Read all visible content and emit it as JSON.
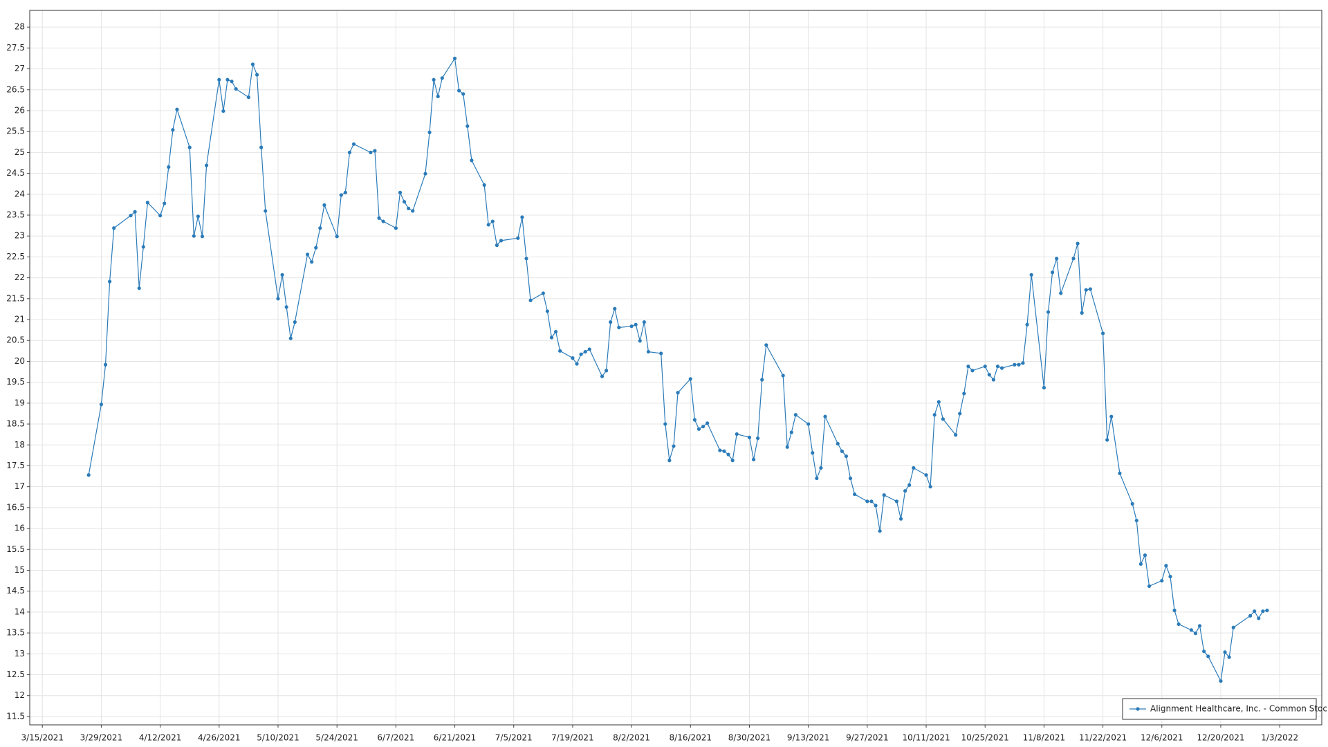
{
  "chart_data": {
    "type": "line",
    "x": [
      "3/26/2021",
      "3/29/2021",
      "3/30/2021",
      "3/31/2021",
      "4/1/2021",
      "4/5/2021",
      "4/6/2021",
      "4/7/2021",
      "4/8/2021",
      "4/9/2021",
      "4/12/2021",
      "4/13/2021",
      "4/14/2021",
      "4/15/2021",
      "4/16/2021",
      "4/19/2021",
      "4/20/2021",
      "4/21/2021",
      "4/22/2021",
      "4/23/2021",
      "4/26/2021",
      "4/27/2021",
      "4/28/2021",
      "4/29/2021",
      "4/30/2021",
      "5/3/2021",
      "5/4/2021",
      "5/5/2021",
      "5/6/2021",
      "5/7/2021",
      "5/10/2021",
      "5/11/2021",
      "5/12/2021",
      "5/13/2021",
      "5/14/2021",
      "5/17/2021",
      "5/18/2021",
      "5/19/2021",
      "5/20/2021",
      "5/21/2021",
      "5/24/2021",
      "5/25/2021",
      "5/26/2021",
      "5/27/2021",
      "5/28/2021",
      "6/1/2021",
      "6/2/2021",
      "6/3/2021",
      "6/4/2021",
      "6/7/2021",
      "6/8/2021",
      "6/9/2021",
      "6/10/2021",
      "6/11/2021",
      "6/14/2021",
      "6/15/2021",
      "6/16/2021",
      "6/17/2021",
      "6/18/2021",
      "6/21/2021",
      "6/22/2021",
      "6/23/2021",
      "6/24/2021",
      "6/25/2021",
      "6/28/2021",
      "6/29/2021",
      "6/30/2021",
      "7/1/2021",
      "7/2/2021",
      "7/6/2021",
      "7/7/2021",
      "7/8/2021",
      "7/9/2021",
      "7/12/2021",
      "7/13/2021",
      "7/14/2021",
      "7/15/2021",
      "7/16/2021",
      "7/19/2021",
      "7/20/2021",
      "7/21/2021",
      "7/22/2021",
      "7/23/2021",
      "7/26/2021",
      "7/27/2021",
      "7/28/2021",
      "7/29/2021",
      "7/30/2021",
      "8/2/2021",
      "8/3/2021",
      "8/4/2021",
      "8/5/2021",
      "8/6/2021",
      "8/9/2021",
      "8/10/2021",
      "8/11/2021",
      "8/12/2021",
      "8/13/2021",
      "8/16/2021",
      "8/17/2021",
      "8/18/2021",
      "8/19/2021",
      "8/20/2021",
      "8/23/2021",
      "8/24/2021",
      "8/25/2021",
      "8/26/2021",
      "8/27/2021",
      "8/30/2021",
      "8/31/2021",
      "9/1/2021",
      "9/2/2021",
      "9/3/2021",
      "9/7/2021",
      "9/8/2021",
      "9/9/2021",
      "9/10/2021",
      "9/13/2021",
      "9/14/2021",
      "9/15/2021",
      "9/16/2021",
      "9/17/2021",
      "9/20/2021",
      "9/21/2021",
      "9/22/2021",
      "9/23/2021",
      "9/24/2021",
      "9/27/2021",
      "9/28/2021",
      "9/29/2021",
      "9/30/2021",
      "10/1/2021",
      "10/4/2021",
      "10/5/2021",
      "10/6/2021",
      "10/7/2021",
      "10/8/2021",
      "10/11/2021",
      "10/12/2021",
      "10/13/2021",
      "10/14/2021",
      "10/15/2021",
      "10/18/2021",
      "10/19/2021",
      "10/20/2021",
      "10/21/2021",
      "10/22/2021",
      "10/25/2021",
      "10/26/2021",
      "10/27/2021",
      "10/28/2021",
      "10/29/2021",
      "11/1/2021",
      "11/2/2021",
      "11/3/2021",
      "11/4/2021",
      "11/5/2021",
      "11/8/2021",
      "11/9/2021",
      "11/10/2021",
      "11/11/2021",
      "11/12/2021",
      "11/15/2021",
      "11/16/2021",
      "11/17/2021",
      "11/18/2021",
      "11/19/2021",
      "11/22/2021",
      "11/23/2021",
      "11/24/2021",
      "11/26/2021",
      "11/29/2021",
      "11/30/2021",
      "12/1/2021",
      "12/2/2021",
      "12/3/2021",
      "12/6/2021",
      "12/7/2021",
      "12/8/2021",
      "12/9/2021",
      "12/10/2021",
      "12/13/2021",
      "12/14/2021",
      "12/15/2021",
      "12/16/2021",
      "12/17/2021",
      "12/20/2021",
      "12/21/2021",
      "12/22/2021",
      "12/23/2021",
      "12/27/2021",
      "12/28/2021",
      "12/29/2021",
      "12/30/2021",
      "12/31/2021"
    ],
    "series": [
      {
        "name": "Alignment Healthcare, Inc. - Common Stock",
        "color": "#2b7bb9",
        "values": [
          17.28,
          18.97,
          19.92,
          21.91,
          23.19,
          23.49,
          23.58,
          21.75,
          22.74,
          23.8,
          23.49,
          23.78,
          24.65,
          25.54,
          26.03,
          25.12,
          23.0,
          23.47,
          22.99,
          24.69,
          26.74,
          25.99,
          26.74,
          26.7,
          26.52,
          26.32,
          27.11,
          26.86,
          25.12,
          23.6,
          21.5,
          22.07,
          21.3,
          20.55,
          20.94,
          22.56,
          22.38,
          22.72,
          23.19,
          23.74,
          22.99,
          23.98,
          24.04,
          25.0,
          25.2,
          25.0,
          25.04,
          23.43,
          23.35,
          23.19,
          24.04,
          23.82,
          23.66,
          23.6,
          24.49,
          25.48,
          26.74,
          26.34,
          26.78,
          27.25,
          26.48,
          26.4,
          25.63,
          24.81,
          24.22,
          23.27,
          23.35,
          22.78,
          22.89,
          22.95,
          23.45,
          22.46,
          21.46,
          21.63,
          21.2,
          20.57,
          20.71,
          20.25,
          20.08,
          19.94,
          20.17,
          20.23,
          20.29,
          19.64,
          19.78,
          20.94,
          21.26,
          20.81,
          20.84,
          20.88,
          20.49,
          20.94,
          20.23,
          20.19,
          18.5,
          17.63,
          17.97,
          19.25,
          19.58,
          18.6,
          18.38,
          18.44,
          18.52,
          17.87,
          17.85,
          17.77,
          17.63,
          18.26,
          18.18,
          17.65,
          18.16,
          19.56,
          20.39,
          19.66,
          17.95,
          18.3,
          18.72,
          18.5,
          17.81,
          17.2,
          17.45,
          18.68,
          18.03,
          17.85,
          17.73,
          17.2,
          16.82,
          16.65,
          16.65,
          16.55,
          15.94,
          16.8,
          16.65,
          16.23,
          16.9,
          17.04,
          17.45,
          17.28,
          17.0,
          18.72,
          19.03,
          18.62,
          18.24,
          18.75,
          19.23,
          19.88,
          19.78,
          19.88,
          19.68,
          19.56,
          19.88,
          19.84,
          19.92,
          19.92,
          19.96,
          20.88,
          22.07,
          19.37,
          21.18,
          22.13,
          22.46,
          21.63,
          22.46,
          22.82,
          21.16,
          21.71,
          21.73,
          20.67,
          18.12,
          18.68,
          17.32,
          16.59,
          16.19,
          15.15,
          15.36,
          14.62,
          14.75,
          15.11,
          14.85,
          14.04,
          13.71,
          13.57,
          13.49,
          13.67,
          13.06,
          12.94,
          12.35,
          13.04,
          12.92,
          13.63,
          13.91,
          14.02,
          13.85,
          14.02,
          14.04
        ]
      }
    ],
    "xlim": [
      "3/12/2021",
      "1/13/2022"
    ],
    "xticks": [
      "3/15/2021",
      "3/29/2021",
      "4/12/2021",
      "4/26/2021",
      "5/10/2021",
      "5/24/2021",
      "6/7/2021",
      "6/21/2021",
      "7/5/2021",
      "7/19/2021",
      "8/2/2021",
      "8/16/2021",
      "8/30/2021",
      "9/13/2021",
      "9/27/2021",
      "10/11/2021",
      "10/25/2021",
      "11/8/2021",
      "11/22/2021",
      "12/6/2021",
      "12/20/2021",
      "1/3/2022"
    ],
    "ylim": [
      11.3,
      28.4
    ],
    "yticks": [
      11.5,
      12,
      12.5,
      13,
      13.5,
      14,
      14.5,
      15,
      15.5,
      16,
      16.5,
      17,
      17.5,
      18,
      18.5,
      19,
      19.5,
      20,
      20.5,
      21,
      21.5,
      22,
      22.5,
      23,
      23.5,
      24,
      24.5,
      25,
      25.5,
      26,
      26.5,
      27,
      27.5,
      28
    ],
    "grid": true,
    "legend": "lower right"
  }
}
